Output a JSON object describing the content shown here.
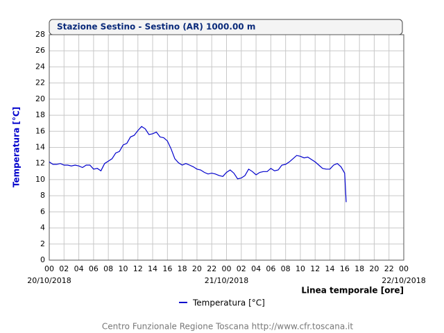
{
  "chart_data": {
    "type": "line",
    "title": "Stazione Sestino - Sestino (AR) 1000.00 m",
    "ylabel": "Temperatura [°C]",
    "xlabel": "Linea temporale [ore]",
    "footer": "Centro Funzionale Regione Toscana http://www.cfr.toscana.it",
    "x": [
      0,
      0.5,
      1,
      1.5,
      2,
      2.5,
      3,
      3.5,
      4,
      4.5,
      5,
      5.5,
      6,
      6.5,
      7,
      7.5,
      8,
      8.5,
      9,
      9.5,
      10,
      10.5,
      11,
      11.5,
      12,
      12.5,
      13,
      13.5,
      14,
      14.5,
      15,
      15.5,
      16,
      16.5,
      17,
      17.5,
      18,
      18.5,
      19,
      19.5,
      20,
      20.5,
      21,
      21.5,
      22,
      22.5,
      23,
      23.5,
      24,
      24.5,
      25,
      25.5,
      26,
      26.5,
      27,
      27.5,
      28,
      28.5,
      29,
      29.5,
      30,
      30.5,
      31,
      31.5,
      32,
      32.5,
      33,
      33.5,
      34,
      34.5,
      35,
      35.5,
      36,
      36.5,
      37,
      37.5,
      38,
      38.5,
      39,
      39.5,
      40,
      40.2
    ],
    "series": [
      {
        "name": "Temperatura [°C]",
        "color": "#0000cc",
        "values": [
          12.2,
          11.9,
          11.9,
          12.0,
          11.8,
          11.8,
          11.7,
          11.8,
          11.7,
          11.5,
          11.8,
          11.8,
          11.3,
          11.4,
          11.1,
          12.0,
          12.3,
          12.6,
          13.3,
          13.5,
          14.3,
          14.5,
          15.3,
          15.5,
          16.1,
          16.6,
          16.3,
          15.6,
          15.7,
          15.9,
          15.3,
          15.2,
          14.8,
          13.8,
          12.6,
          12.1,
          11.8,
          12.0,
          11.8,
          11.6,
          11.3,
          11.2,
          10.9,
          10.7,
          10.8,
          10.7,
          10.5,
          10.4,
          10.9,
          11.2,
          10.8,
          10.1,
          10.2,
          10.5,
          11.3,
          11.0,
          10.6,
          10.9,
          11.0,
          11.0,
          11.4,
          11.1,
          11.2,
          11.8,
          11.9,
          12.2,
          12.6,
          13.0,
          12.9,
          12.7,
          12.8,
          12.5,
          12.2,
          11.8,
          11.4,
          11.3,
          11.3,
          11.8,
          12.0,
          11.6,
          10.8,
          7.2
        ]
      }
    ],
    "xlim": [
      0,
      48
    ],
    "xticks": [
      {
        "value": 0,
        "label": "00"
      },
      {
        "value": 2,
        "label": "02"
      },
      {
        "value": 4,
        "label": "04"
      },
      {
        "value": 6,
        "label": "06"
      },
      {
        "value": 8,
        "label": "08"
      },
      {
        "value": 10,
        "label": "10"
      },
      {
        "value": 12,
        "label": "12"
      },
      {
        "value": 14,
        "label": "14"
      },
      {
        "value": 16,
        "label": "16"
      },
      {
        "value": 18,
        "label": "18"
      },
      {
        "value": 20,
        "label": "20"
      },
      {
        "value": 22,
        "label": "22"
      },
      {
        "value": 24,
        "label": "00"
      },
      {
        "value": 26,
        "label": "02"
      },
      {
        "value": 28,
        "label": "04"
      },
      {
        "value": 30,
        "label": "06"
      },
      {
        "value": 32,
        "label": "08"
      },
      {
        "value": 34,
        "label": "10"
      },
      {
        "value": 36,
        "label": "12"
      },
      {
        "value": 38,
        "label": "14"
      },
      {
        "value": 40,
        "label": "16"
      },
      {
        "value": 42,
        "label": "18"
      },
      {
        "value": 44,
        "label": "20"
      },
      {
        "value": 46,
        "label": "22"
      },
      {
        "value": 48,
        "label": "00"
      }
    ],
    "xdates": [
      {
        "value": 0,
        "label": "20/10/2018"
      },
      {
        "value": 24,
        "label": "21/10/2018"
      },
      {
        "value": 48,
        "label": "22/10/2018"
      }
    ],
    "ylim": [
      0,
      28
    ],
    "yticks": [
      0,
      2,
      4,
      6,
      8,
      10,
      12,
      14,
      16,
      18,
      20,
      22,
      24,
      26,
      28
    ],
    "grid": true
  }
}
